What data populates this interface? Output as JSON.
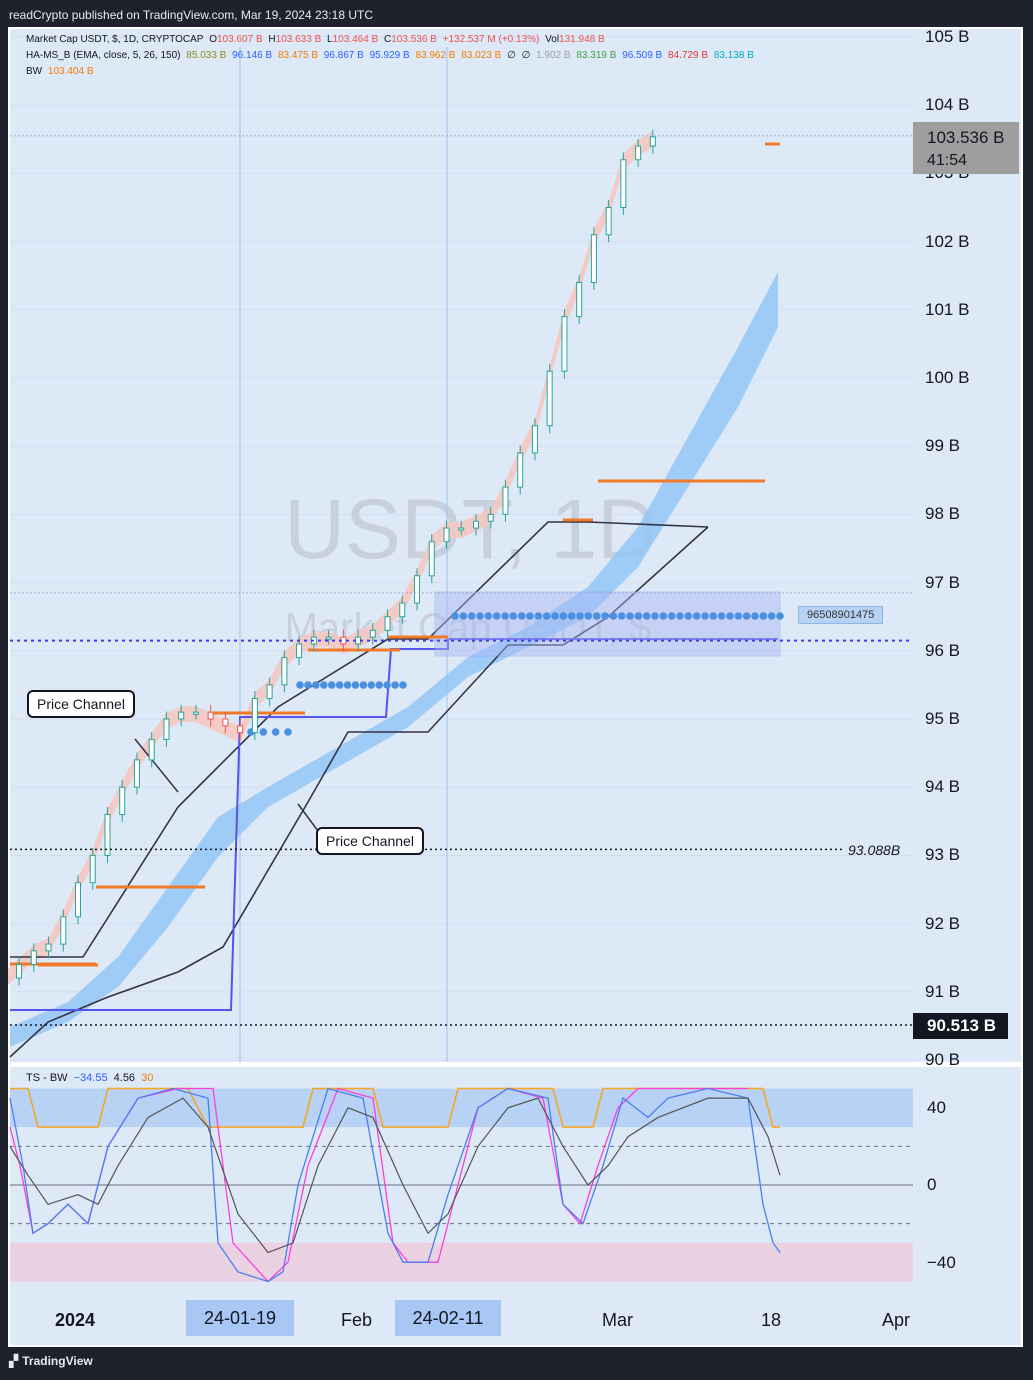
{
  "header": {
    "credit": "readCrypto published on TradingView.com, Mar 19, 2024 23:18 UTC"
  },
  "legend": {
    "line1": {
      "symbol": "Market Cap USDT, $, 1D, CRYPTOCAP",
      "o_label": "O",
      "o": "103.607 B",
      "h_label": "H",
      "h": "103.633 B",
      "l_label": "L",
      "l": "103.464 B",
      "c_label": "C",
      "c": "103.536 B",
      "chg": "+132.537 M (+0.13%)",
      "vol_label": "Vol",
      "vol": "131.948 B"
    },
    "line2": {
      "name": "HA-MS_B (EMA, close, 5, 26, 150)",
      "v1": "85.033 B",
      "v2": "96.146 B",
      "v3": "83.475 B",
      "v4": "96.867 B",
      "v5": "95.929 B",
      "v6": "83.962 B",
      "v7": "83.023 B",
      "v8": "∅",
      "v9": "∅",
      "v10": "1.902 B",
      "v11": "83.319 B",
      "v12": "96.509 B",
      "v13": "84.729 B",
      "v14": "83.138 B"
    },
    "line3": {
      "name": "BW",
      "value": "103.404 B"
    }
  },
  "watermark": {
    "title": "USDT, 1D",
    "subtitle": "Market Cap USDT, $"
  },
  "price_label": {
    "value": "103.536 B",
    "countdown": "41:54"
  },
  "low_label": "90.513 B",
  "level_label_93": "93.088B",
  "box_label": "96508901475",
  "callouts": {
    "upper": "Price Channel",
    "lower": "Price Channel"
  },
  "ts_legend": {
    "name": "TS - BW",
    "v1": "−34.55",
    "v2": "4.56",
    "v3": "30"
  },
  "x_axis": {
    "label_2024": "2024",
    "chip_1": "24-01-19",
    "label_feb": "Feb",
    "chip_2": "24-02-11",
    "label_mar": "Mar",
    "label_18": "18",
    "label_apr": "Apr"
  },
  "y_axis": {
    "ticks": [
      "105 B",
      "104 B",
      "103 B",
      "102 B",
      "101 B",
      "100 B",
      "99 B",
      "98 B",
      "97 B",
      "96 B",
      "95 B",
      "94 B",
      "93 B",
      "92 B",
      "91 B",
      "90 B"
    ]
  },
  "ts_axis": {
    "ticks": [
      "40",
      "0",
      "−40"
    ]
  },
  "footer": {
    "brand": "TradingView"
  },
  "colors": {
    "up": "#26a69a",
    "down": "#ef5350",
    "ribbon": "#90c4f5",
    "pink_band": "#f4c7c0",
    "orange": "#f07a2a",
    "blue_line": "#5555ee",
    "channel": "#333344",
    "ts_orange": "#f5a623",
    "ts_pink": "#ff3ddb",
    "ts_blue": "#4a7ef0",
    "ts_gray": "#555555"
  },
  "chart_data": {
    "type": "candlestick",
    "title": "USDT, 1D",
    "subtitle": "Market Cap USDT, $",
    "ylabel": "",
    "xlabel": "",
    "ylim": [
      90,
      105
    ],
    "x": [
      "2023-12-22",
      "2023-12-24",
      "2023-12-26",
      "2023-12-28",
      "2023-12-30",
      "2024-01-01",
      "2024-01-03",
      "2024-01-05",
      "2024-01-07",
      "2024-01-09",
      "2024-01-11",
      "2024-01-13",
      "2024-01-15",
      "2024-01-17",
      "2024-01-19",
      "2024-01-21",
      "2024-01-23",
      "2024-01-25",
      "2024-01-27",
      "2024-01-29",
      "2024-01-31",
      "2024-02-02",
      "2024-02-04",
      "2024-02-06",
      "2024-02-08",
      "2024-02-10",
      "2024-02-12",
      "2024-02-14",
      "2024-02-16",
      "2024-02-18",
      "2024-02-20",
      "2024-02-22",
      "2024-02-24",
      "2024-02-26",
      "2024-02-28",
      "2024-03-01",
      "2024-03-03",
      "2024-03-05",
      "2024-03-07",
      "2024-03-09",
      "2024-03-11",
      "2024-03-13",
      "2024-03-15",
      "2024-03-17",
      "2024-03-19"
    ],
    "close": [
      91.2,
      91.4,
      91.6,
      91.7,
      92.1,
      92.6,
      93.0,
      93.6,
      94.0,
      94.4,
      94.7,
      95.0,
      95.1,
      95.1,
      95.0,
      94.9,
      94.8,
      95.3,
      95.5,
      95.9,
      96.1,
      96.2,
      96.2,
      96.1,
      96.2,
      96.3,
      96.5,
      96.7,
      97.1,
      97.6,
      97.8,
      97.8,
      97.9,
      98.0,
      98.4,
      98.9,
      99.3,
      100.1,
      100.9,
      101.4,
      102.1,
      102.5,
      103.2,
      103.4,
      103.536
    ],
    "levels": [
      {
        "label": "93.088B",
        "value": 93.088
      },
      {
        "label": "90.513 B",
        "value": 90.513
      },
      {
        "label": "96508901475",
        "value": 96.509
      }
    ],
    "indicator": {
      "name": "TS - BW",
      "ylim": [
        -60,
        60
      ],
      "levels": [
        40,
        0,
        -40
      ]
    }
  }
}
